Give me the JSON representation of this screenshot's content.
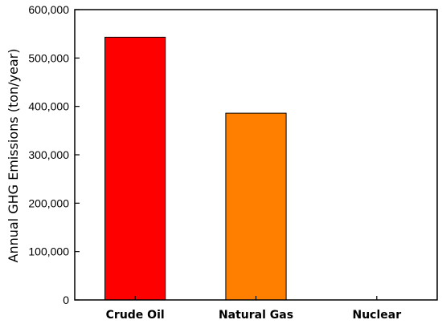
{
  "chart_data": {
    "type": "bar",
    "categories": [
      "Crude Oil",
      "Natural Gas",
      "Nuclear"
    ],
    "values": [
      543000,
      386000,
      0
    ],
    "colors": [
      "#ff0000",
      "#ff8000",
      "#0000ff"
    ],
    "xlabel": "",
    "ylabel": "Annual GHG Emissions (ton/year)",
    "ylim": [
      0,
      600000
    ],
    "yticks": [
      0,
      100000,
      200000,
      300000,
      400000,
      500000,
      600000
    ],
    "ytick_labels": [
      "0",
      "100,000",
      "200,000",
      "300,000",
      "400,000",
      "500,000",
      "600,000"
    ],
    "grid": false,
    "legend": "none"
  }
}
